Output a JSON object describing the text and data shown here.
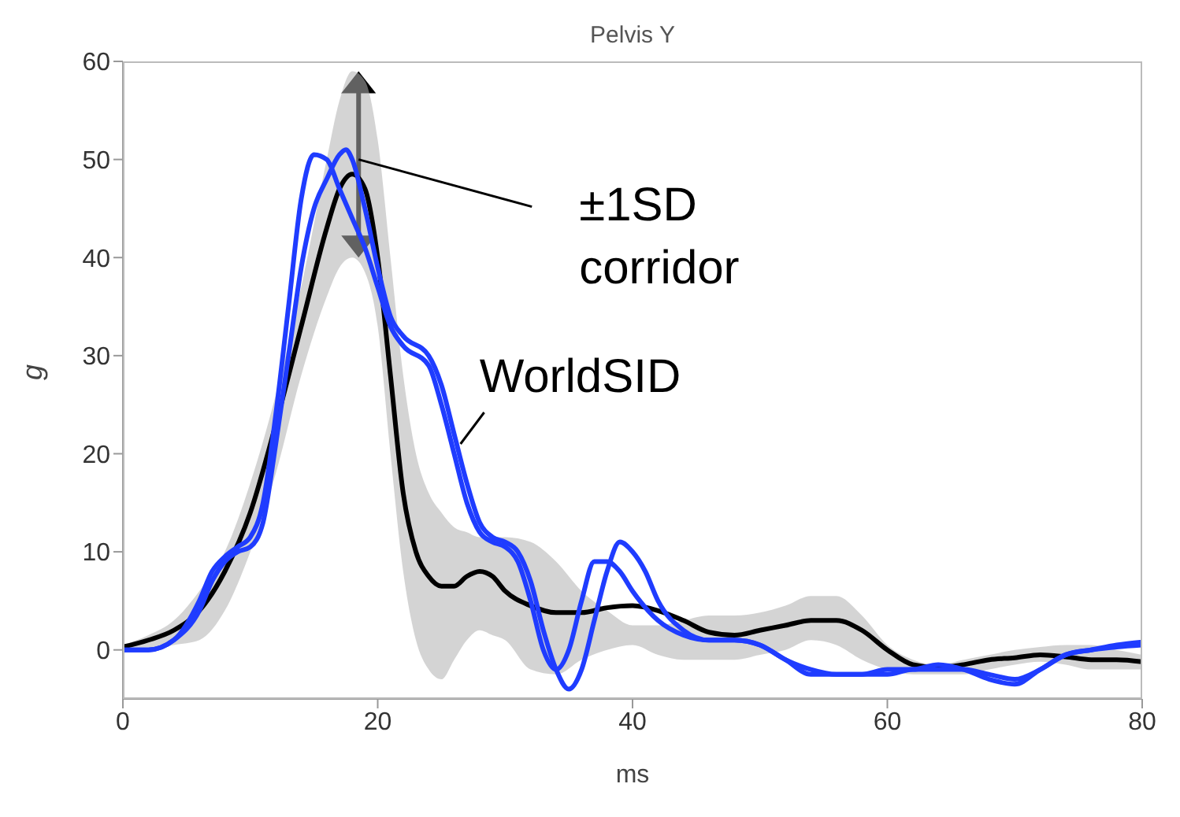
{
  "chart_data": {
    "type": "line",
    "title": "Pelvis Y",
    "xlabel": "ms",
    "ylabel": "g",
    "xlim": [
      0,
      80
    ],
    "xticks": [
      0,
      20,
      40,
      60,
      80
    ],
    "ylim": [
      -5,
      60
    ],
    "yticks": [
      0,
      10,
      20,
      30,
      40,
      50,
      60
    ],
    "grid": false,
    "legend": false,
    "marker": "none",
    "line_style": "solid",
    "annotations": [
      {
        "text": "±1SD corridor",
        "x": 18.5,
        "y": 50
      },
      {
        "text": "WorldSID",
        "x": 26.5,
        "y": 21
      }
    ],
    "series": [
      {
        "color": "#000000",
        "x": [
          0,
          2,
          4,
          6,
          8,
          10,
          12,
          14,
          16,
          17,
          18,
          19,
          20,
          21,
          22,
          23,
          24,
          25,
          26,
          27,
          28,
          29,
          30,
          32,
          34,
          36,
          38,
          40,
          42,
          44,
          46,
          48,
          50,
          52,
          54,
          56,
          58,
          60,
          62,
          64,
          66,
          68,
          70,
          72,
          74,
          76,
          78,
          80
        ],
        "values": [
          0.3,
          1,
          2,
          4,
          8,
          14,
          23,
          33,
          43,
          47,
          48.5,
          47,
          40,
          28,
          16,
          10,
          7.5,
          6.5,
          6.5,
          7.5,
          8,
          7.5,
          6,
          4.5,
          3.8,
          3.8,
          4.3,
          4.5,
          4,
          3,
          1.8,
          1.5,
          2,
          2.5,
          3,
          3,
          2,
          0,
          -1.5,
          -1.8,
          -1.5,
          -1,
          -0.8,
          -0.5,
          -0.7,
          -1,
          -1,
          -1.2
        ],
        "upper": [
          0.5,
          1.5,
          3,
          6,
          10,
          17,
          26,
          37,
          50,
          56,
          59,
          58,
          52,
          40,
          28,
          20,
          16,
          14,
          12.5,
          12,
          11.5,
          11.5,
          11.5,
          11,
          9,
          6,
          4,
          2.5,
          2.5,
          3,
          3.5,
          3.5,
          3.8,
          4.5,
          5.5,
          5.5,
          3.5,
          0.5,
          -1,
          -1.5,
          -1,
          -0.5,
          0,
          0.3,
          0.5,
          0.5,
          0,
          -0.5
        ],
        "lower": [
          0,
          0,
          0.5,
          1,
          4,
          10,
          18,
          28,
          36,
          39,
          40,
          38.5,
          33,
          20,
          8,
          1,
          -2,
          -3,
          -1,
          1,
          2,
          1.5,
          1,
          -2,
          -2.5,
          -1,
          0,
          0.5,
          -0.5,
          -1,
          -1,
          -1,
          -0.5,
          0,
          1,
          0.5,
          -1,
          -2,
          -2.5,
          -2.5,
          -2.5,
          -2,
          -1.5,
          -1.2,
          -1.5,
          -2,
          -2,
          -2
        ]
      },
      {
        "color": "#1f3cff",
        "x": [
          0,
          2,
          4,
          6,
          7,
          8,
          9,
          10,
          11,
          12,
          13,
          14,
          15,
          16,
          17,
          18,
          19,
          20,
          21,
          22,
          24,
          25,
          26,
          27,
          28,
          29,
          30,
          31,
          32,
          33,
          34,
          35,
          36,
          37,
          38,
          39,
          40,
          42,
          44,
          46,
          48,
          50,
          52,
          54,
          56,
          58,
          60,
          62,
          64,
          66,
          68,
          70,
          72,
          74,
          76,
          78,
          80
        ],
        "values": [
          0,
          0,
          1,
          5,
          8,
          9.5,
          10.5,
          11.5,
          15,
          24,
          35,
          46,
          50.5,
          50,
          47,
          44,
          41,
          37,
          33,
          31,
          29,
          25,
          20,
          15,
          12,
          11,
          10.5,
          9,
          5,
          0,
          -2,
          0,
          5,
          9,
          9,
          8,
          6,
          3,
          1.5,
          1,
          1,
          0.5,
          -1,
          -2,
          -2.5,
          -2.5,
          -2.5,
          -2,
          -2,
          -2,
          -2.5,
          -3,
          -2,
          -0.5,
          0,
          0.3,
          0.5
        ]
      },
      {
        "color": "#1f3cff",
        "x": [
          0,
          2,
          4,
          6,
          7,
          8,
          9,
          10,
          11,
          12,
          13,
          14,
          15,
          16,
          17,
          17.5,
          18,
          19,
          20,
          21,
          22,
          24,
          25,
          26,
          27,
          28,
          29,
          30,
          31,
          32,
          33,
          34,
          35,
          36,
          37,
          38,
          39,
          40,
          41,
          42,
          44,
          46,
          48,
          50,
          52,
          54,
          56,
          58,
          60,
          62,
          64,
          66,
          68,
          70,
          72,
          74,
          76,
          78,
          80
        ],
        "values": [
          0,
          0,
          1,
          4,
          7,
          9,
          10,
          10.5,
          13,
          21,
          30,
          39,
          45,
          48,
          50.5,
          51,
          50,
          45,
          39,
          34,
          32,
          30,
          27,
          22,
          17,
          13,
          11.5,
          11,
          10,
          7,
          2,
          -2,
          -4,
          -2,
          3,
          8,
          11,
          10,
          8,
          5,
          2,
          1,
          1,
          0.5,
          -1,
          -2.5,
          -2.5,
          -2.5,
          -2,
          -2,
          -1.5,
          -2,
          -3,
          -3.5,
          -2,
          -0.5,
          0,
          0.5,
          0.8
        ]
      }
    ]
  }
}
